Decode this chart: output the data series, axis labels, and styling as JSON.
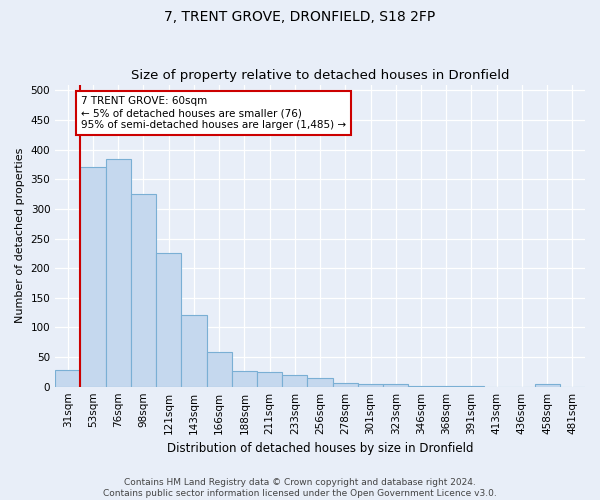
{
  "title": "7, TRENT GROVE, DRONFIELD, S18 2FP",
  "subtitle": "Size of property relative to detached houses in Dronfield",
  "xlabel": "Distribution of detached houses by size in Dronfield",
  "ylabel": "Number of detached properties",
  "categories": [
    "31sqm",
    "53sqm",
    "76sqm",
    "98sqm",
    "121sqm",
    "143sqm",
    "166sqm",
    "188sqm",
    "211sqm",
    "233sqm",
    "256sqm",
    "278sqm",
    "301sqm",
    "323sqm",
    "346sqm",
    "368sqm",
    "391sqm",
    "413sqm",
    "436sqm",
    "458sqm",
    "481sqm"
  ],
  "values": [
    28,
    370,
    385,
    325,
    226,
    121,
    59,
    27,
    24,
    20,
    15,
    7,
    5,
    4,
    1,
    1,
    1,
    0,
    0,
    5,
    0
  ],
  "bar_color": "#c5d8ee",
  "bar_edge_color": "#7aafd4",
  "vline_color": "#cc0000",
  "annotation_text": "7 TRENT GROVE: 60sqm\n← 5% of detached houses are smaller (76)\n95% of semi-detached houses are larger (1,485) →",
  "annotation_box_facecolor": "#ffffff",
  "annotation_box_edgecolor": "#cc0000",
  "ylim": [
    0,
    510
  ],
  "yticks": [
    0,
    50,
    100,
    150,
    200,
    250,
    300,
    350,
    400,
    450,
    500
  ],
  "background_color": "#e8eef8",
  "plot_bg_color": "#e8eef8",
  "grid_color": "#ffffff",
  "footer_text": "Contains HM Land Registry data © Crown copyright and database right 2024.\nContains public sector information licensed under the Open Government Licence v3.0.",
  "title_fontsize": 10,
  "xlabel_fontsize": 8.5,
  "ylabel_fontsize": 8,
  "tick_fontsize": 7.5,
  "footer_fontsize": 6.5,
  "annotation_fontsize": 7.5
}
